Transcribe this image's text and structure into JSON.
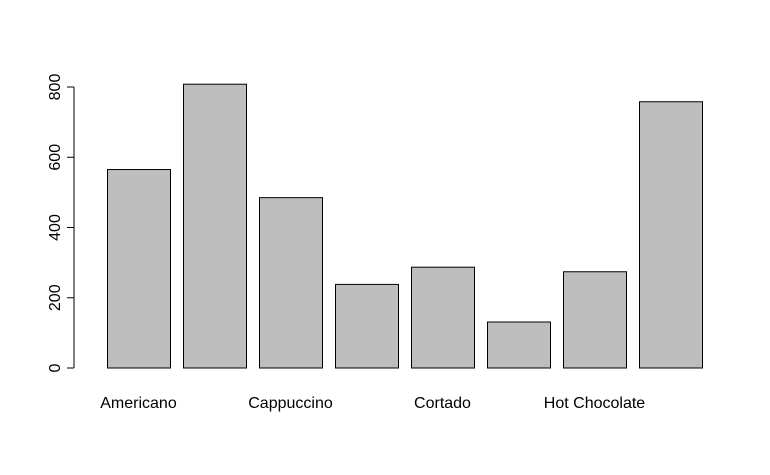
{
  "chart_data": {
    "type": "bar",
    "title": "",
    "xlabel": "",
    "ylabel": "",
    "categories": [
      "Americano",
      "",
      "Cappuccino",
      "",
      "Cortado",
      "",
      "Hot Chocolate",
      ""
    ],
    "values": [
      565,
      808,
      485,
      238,
      287,
      131,
      274,
      758
    ],
    "ylim": [
      0,
      800
    ],
    "yticks": [
      "0",
      "200",
      "400",
      "600",
      "800"
    ],
    "grid": false,
    "legend": "none",
    "bar_color": "#bebebe",
    "edge_color": "#000000"
  }
}
